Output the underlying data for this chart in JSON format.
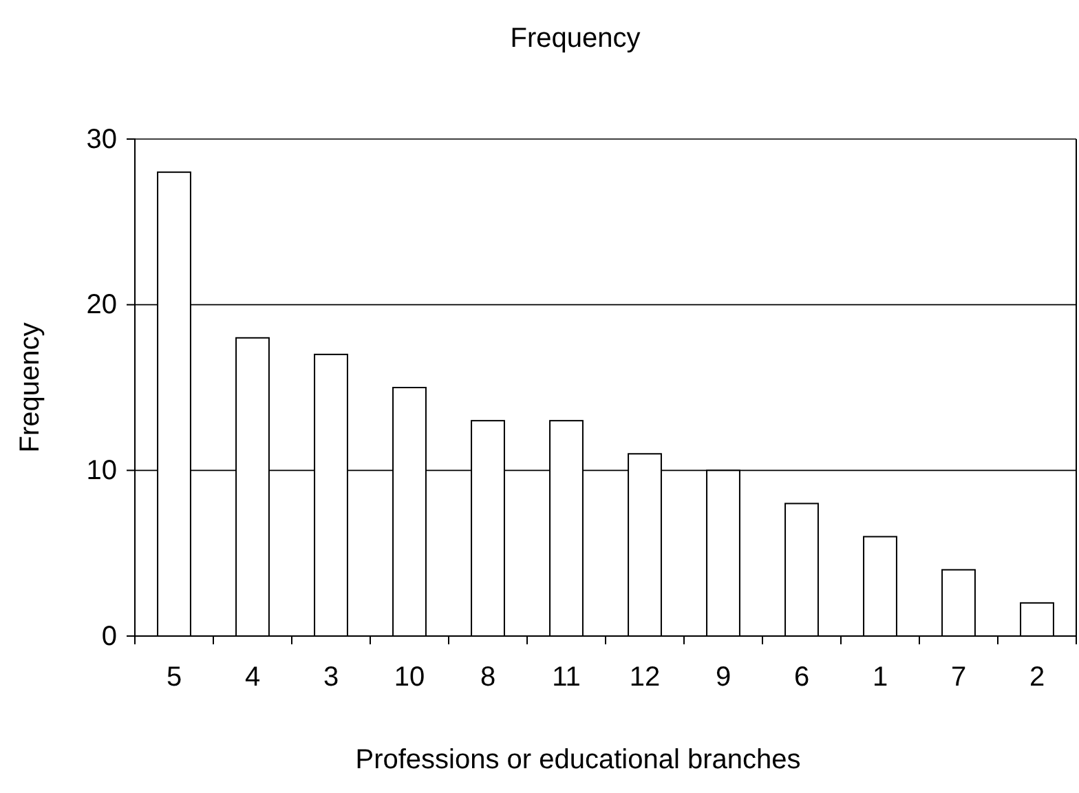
{
  "chart_data": {
    "type": "bar",
    "title": "Frequency",
    "xlabel": "Professions or educational branches",
    "ylabel": "Frequency",
    "categories": [
      "5",
      "4",
      "3",
      "10",
      "8",
      "11",
      "12",
      "9",
      "6",
      "1",
      "7",
      "2"
    ],
    "values": [
      28,
      18,
      17,
      15,
      13,
      13,
      11,
      10,
      8,
      6,
      4,
      2
    ],
    "color": "#ffffff",
    "ylim": [
      0,
      30
    ],
    "yticks": [
      0,
      10,
      20,
      30
    ],
    "grid": "y"
  }
}
